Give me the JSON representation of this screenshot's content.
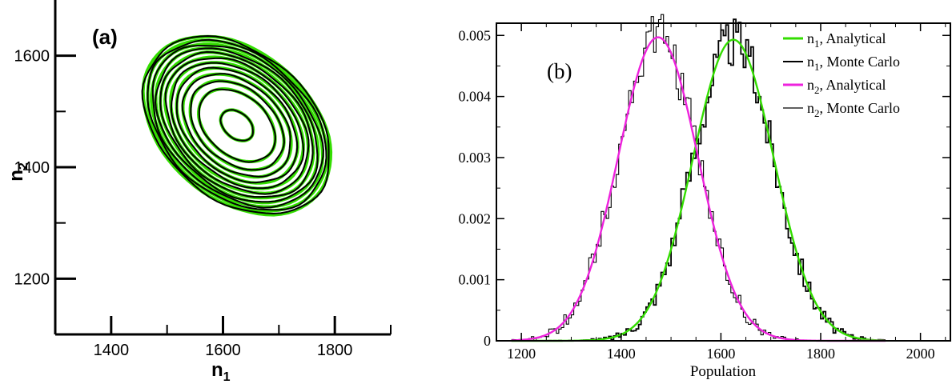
{
  "chart_data": [
    {
      "type": "contour",
      "panel_label": "(a)",
      "xlabel": "n",
      "xlabel_sub": "1",
      "ylabel": "n",
      "ylabel_sub": "2",
      "xlim": [
        1300,
        1900
      ],
      "ylim": [
        1100,
        1700
      ],
      "xticks": [
        1400,
        1600,
        1800
      ],
      "yticks": [
        1200,
        1400,
        1600
      ],
      "xtick_labels": [
        "1400",
        "1600",
        "1800"
      ],
      "ytick_labels": [
        "1200",
        "1400",
        "1600"
      ],
      "center": [
        1625,
        1475
      ],
      "outer_extent": {
        "n1": [
          1448,
          1817
        ],
        "n2": [
          1293,
          1658
        ]
      },
      "contour_levels": 12,
      "correlation": -0.35,
      "series": [
        {
          "name": "Analytical",
          "color": "#33dd00"
        },
        {
          "name": "Monte Carlo",
          "color": "#000000"
        }
      ]
    },
    {
      "type": "line",
      "panel_label": "(b)",
      "xlabel": "Population",
      "ylabel": "",
      "xlim": [
        1150,
        2060
      ],
      "ylim": [
        0,
        0.0052
      ],
      "xticks": [
        1200,
        1400,
        1600,
        1800,
        2000
      ],
      "yticks": [
        0,
        0.001,
        0.002,
        0.003,
        0.004,
        0.005
      ],
      "xtick_labels": [
        "1200",
        "1400",
        "1600",
        "1800",
        "2000"
      ],
      "ytick_labels": [
        "0",
        "0.001",
        "0.002",
        "0.003",
        "0.004",
        "0.005"
      ],
      "legend_position": "top-right",
      "series": [
        {
          "name": "n",
          "sub": "1",
          "suffix": ", Analytical",
          "color": "#33dd00",
          "kind": "analytical",
          "mean": 1625,
          "sd": 81,
          "peak": 0.00493
        },
        {
          "name": "n",
          "sub": "1",
          "suffix": ", Monte Carlo",
          "color": "#000000",
          "kind": "montecarlo",
          "mean": 1625,
          "sd": 81,
          "peak": 0.00493
        },
        {
          "name": "n",
          "sub": "2",
          "suffix": ", Analytical",
          "color": "#ee22dd",
          "kind": "analytical",
          "mean": 1474,
          "sd": 80,
          "peak": 0.00497
        },
        {
          "name": "n",
          "sub": "2",
          "suffix": ", Monte Carlo",
          "color": "#000000",
          "kind": "montecarlo",
          "mean": 1474,
          "sd": 80,
          "peak": 0.00497
        }
      ]
    }
  ]
}
